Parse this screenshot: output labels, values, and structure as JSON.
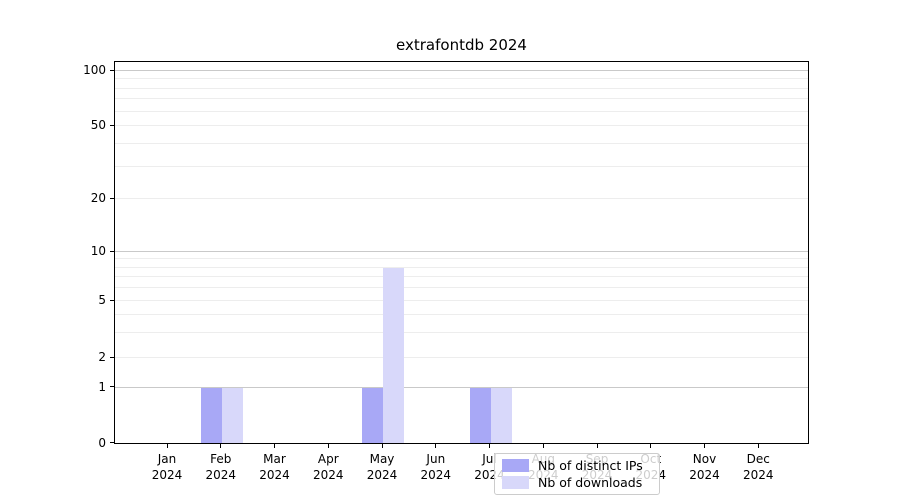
{
  "title": "extrafontdb 2024",
  "colors": {
    "distinct_ips": "#a8a8f6",
    "downloads": "#d8d8fa",
    "major_grid": "#c9c9c9",
    "minor_grid": "#ededed",
    "axis": "#000000"
  },
  "legend": {
    "items": [
      {
        "label": "Nb of distinct IPs",
        "color_key": "distinct_ips"
      },
      {
        "label": "Nb of downloads",
        "color_key": "downloads"
      }
    ]
  },
  "y_axis": {
    "ticks": [
      "0",
      "1",
      "2",
      "5",
      "10",
      "20",
      "50",
      "100"
    ]
  },
  "x_axis": {
    "months": [
      "Jan",
      "Feb",
      "Mar",
      "Apr",
      "May",
      "Jun",
      "Jul",
      "Aug",
      "Sep",
      "Oct",
      "Nov",
      "Dec"
    ],
    "year": "2024"
  },
  "chart_data": {
    "type": "bar",
    "title": "extrafontdb 2024",
    "categories": [
      "Jan 2024",
      "Feb 2024",
      "Mar 2024",
      "Apr 2024",
      "May 2024",
      "Jun 2024",
      "Jul 2024",
      "Aug 2024",
      "Sep 2024",
      "Oct 2024",
      "Nov 2024",
      "Dec 2024"
    ],
    "series": [
      {
        "name": "Nb of distinct IPs",
        "color": "#a8a8f6",
        "values": [
          0,
          1,
          0,
          0,
          1,
          0,
          1,
          0,
          0,
          0,
          0,
          0
        ]
      },
      {
        "name": "Nb of downloads",
        "color": "#d8d8fa",
        "values": [
          0,
          1,
          0,
          0,
          8,
          0,
          1,
          0,
          0,
          0,
          0,
          0
        ]
      }
    ],
    "xlabel": "",
    "ylabel": "",
    "yscale": "symlog",
    "yticks": [
      0,
      1,
      2,
      5,
      10,
      20,
      50,
      100
    ],
    "ylim": [
      0,
      110
    ],
    "grid": "horizontal",
    "legend_position": "inside lower center"
  }
}
